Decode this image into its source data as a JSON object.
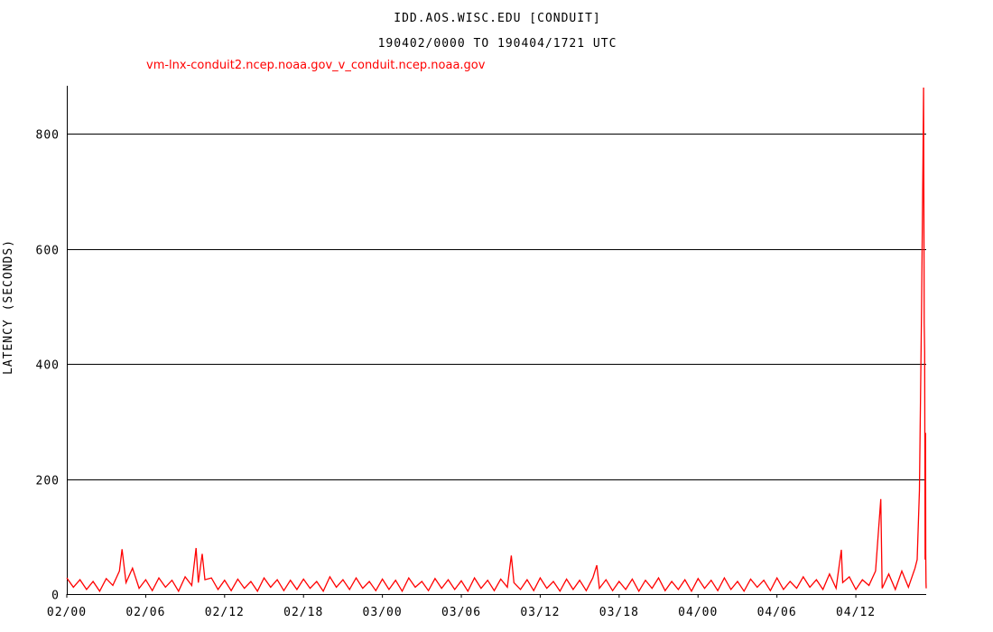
{
  "chart_data": {
    "type": "line",
    "title": "IDD.AOS.WISC.EDU [CONDUIT]",
    "subtitle": "190402/0000 TO 190404/1721 UTC",
    "ylabel": "LATENCY (SECONDS)",
    "xlabel": "",
    "ylim": [
      0,
      880
    ],
    "xlim": [
      "02/0000",
      "04/1721"
    ],
    "grid": true,
    "y_ticks": [
      "0",
      "200",
      "400",
      "600",
      "800"
    ],
    "x_ticks": [
      "02/00",
      "02/06",
      "02/12",
      "02/18",
      "03/00",
      "03/06",
      "03/12",
      "03/18",
      "04/00",
      "04/06",
      "04/12"
    ],
    "series": [
      {
        "name": "vm-lnx-conduit2.ncep.noaa.gov_v_conduit.ncep.noaa.gov",
        "color": "#ff0000",
        "x": [
          "02/0000",
          "02/0030",
          "02/0100",
          "02/0130",
          "02/0200",
          "02/0230",
          "02/0300",
          "02/0330",
          "02/0400",
          "02/0412",
          "02/0430",
          "02/0500",
          "02/0530",
          "02/0600",
          "02/0630",
          "02/0700",
          "02/0730",
          "02/0800",
          "02/0830",
          "02/0900",
          "02/0930",
          "02/0950",
          "02/1000",
          "02/1018",
          "02/1030",
          "02/1100",
          "02/1130",
          "02/1200",
          "02/1230",
          "02/1300",
          "02/1330",
          "02/1400",
          "02/1430",
          "02/1500",
          "02/1530",
          "02/1600",
          "02/1630",
          "02/1700",
          "02/1730",
          "02/1800",
          "02/1830",
          "02/1900",
          "02/1930",
          "02/2000",
          "02/2030",
          "02/2100",
          "02/2130",
          "02/2200",
          "02/2230",
          "02/2300",
          "02/2330",
          "03/0000",
          "03/0030",
          "03/0100",
          "03/0130",
          "03/0200",
          "03/0230",
          "03/0300",
          "03/0330",
          "03/0400",
          "03/0430",
          "03/0500",
          "03/0530",
          "03/0600",
          "03/0630",
          "03/0700",
          "03/0730",
          "03/0800",
          "03/0830",
          "03/0900",
          "03/0930",
          "03/0948",
          "03/1000",
          "03/1030",
          "03/1100",
          "03/1130",
          "03/1200",
          "03/1230",
          "03/1300",
          "03/1330",
          "03/1400",
          "03/1430",
          "03/1500",
          "03/1530",
          "03/1600",
          "03/1618",
          "03/1630",
          "03/1700",
          "03/1730",
          "03/1800",
          "03/1830",
          "03/1900",
          "03/1930",
          "03/2000",
          "03/2030",
          "03/2100",
          "03/2130",
          "03/2200",
          "03/2230",
          "03/2300",
          "03/2330",
          "04/0000",
          "04/0030",
          "04/0100",
          "04/0130",
          "04/0200",
          "04/0230",
          "04/0300",
          "04/0330",
          "04/0400",
          "04/0430",
          "04/0500",
          "04/0530",
          "04/0600",
          "04/0630",
          "04/0700",
          "04/0730",
          "04/0800",
          "04/0830",
          "04/0900",
          "04/0930",
          "04/1000",
          "04/1030",
          "04/1054",
          "04/1100",
          "04/1130",
          "04/1200",
          "04/1230",
          "04/1300",
          "04/1330",
          "04/1354",
          "04/1400",
          "04/1430",
          "04/1500",
          "04/1530",
          "04/1600",
          "04/1630",
          "04/1640",
          "04/1650",
          "04/1700",
          "04/1703",
          "04/1706",
          "04/1709",
          "04/1712",
          "04/1714",
          "04/1716",
          "04/1718",
          "04/1719",
          "04/1720",
          "04/1721"
        ],
        "y": [
          28,
          12,
          25,
          8,
          22,
          5,
          27,
          15,
          40,
          78,
          20,
          45,
          10,
          25,
          6,
          28,
          12,
          24,
          5,
          30,
          15,
          80,
          20,
          70,
          25,
          28,
          8,
          24,
          6,
          26,
          10,
          22,
          5,
          28,
          12,
          25,
          6,
          24,
          8,
          26,
          10,
          22,
          5,
          30,
          12,
          25,
          8,
          28,
          10,
          22,
          6,
          26,
          8,
          24,
          5,
          28,
          12,
          22,
          6,
          27,
          10,
          25,
          8,
          23,
          5,
          28,
          10,
          24,
          6,
          26,
          12,
          67,
          20,
          8,
          25,
          6,
          28,
          10,
          22,
          5,
          26,
          8,
          24,
          6,
          28,
          50,
          10,
          25,
          6,
          22,
          8,
          26,
          5,
          24,
          10,
          28,
          6,
          22,
          8,
          25,
          5,
          27,
          10,
          24,
          6,
          28,
          8,
          22,
          5,
          26,
          12,
          24,
          6,
          28,
          8,
          22,
          10,
          30,
          12,
          25,
          8,
          35,
          10,
          77,
          20,
          30,
          8,
          25,
          15,
          40,
          165,
          10,
          35,
          8,
          40,
          12,
          45,
          60,
          180,
          500,
          620,
          750,
          880,
          470,
          420,
          60,
          280,
          70,
          20,
          10
        ]
      }
    ]
  }
}
